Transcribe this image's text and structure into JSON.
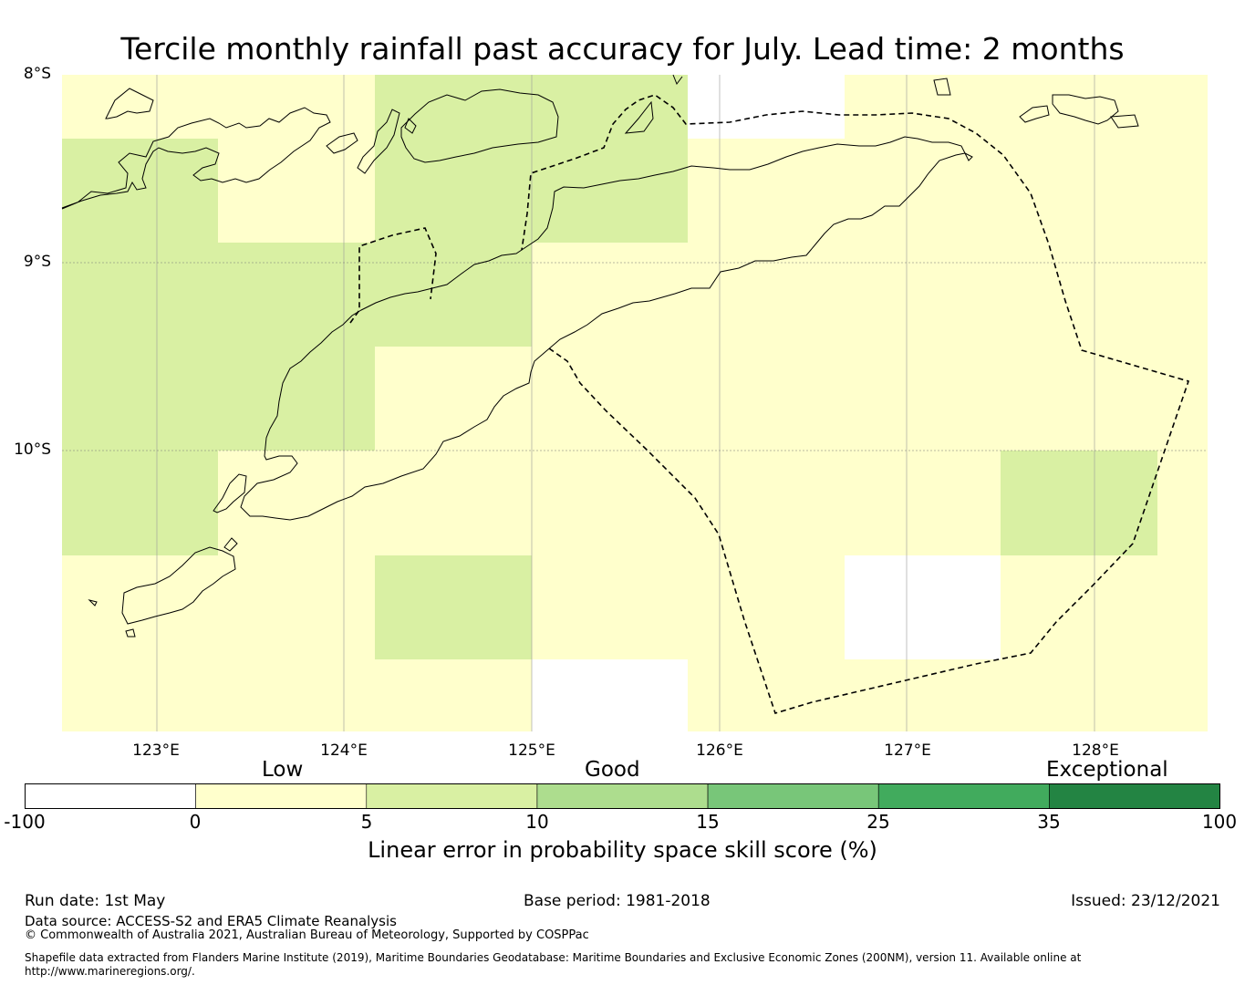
{
  "title": "Tercile monthly rainfall past accuracy for July. Lead time: 2 months",
  "map": {
    "lat_labels": [
      "8°S",
      "9°S",
      "10°S"
    ],
    "lon_labels": [
      "123°E",
      "124°E",
      "125°E",
      "126°E",
      "127°E",
      "128°E"
    ],
    "cells": [
      {
        "row": 0,
        "col": 0,
        "v": "low"
      },
      {
        "row": 0,
        "col": 1,
        "v": "low"
      },
      {
        "row": 0,
        "col": 2,
        "v": "good"
      },
      {
        "row": 0,
        "col": 3,
        "v": "good"
      },
      {
        "row": 0,
        "col": 4,
        "v": "missing"
      },
      {
        "row": 0,
        "col": 5,
        "v": "low"
      },
      {
        "row": 0,
        "col": 6,
        "v": "low"
      },
      {
        "row": 0,
        "col": 7,
        "v": "low"
      },
      {
        "row": 1,
        "col": 0,
        "v": "good"
      },
      {
        "row": 1,
        "col": 1,
        "v": "low"
      },
      {
        "row": 1,
        "col": 2,
        "v": "good"
      },
      {
        "row": 1,
        "col": 3,
        "v": "good"
      },
      {
        "row": 1,
        "col": 4,
        "v": "low"
      },
      {
        "row": 1,
        "col": 5,
        "v": "low"
      },
      {
        "row": 1,
        "col": 6,
        "v": "low"
      },
      {
        "row": 1,
        "col": 7,
        "v": "low"
      },
      {
        "row": 2,
        "col": 0,
        "v": "good"
      },
      {
        "row": 2,
        "col": 1,
        "v": "good"
      },
      {
        "row": 2,
        "col": 2,
        "v": "good"
      },
      {
        "row": 2,
        "col": 3,
        "v": "low"
      },
      {
        "row": 2,
        "col": 4,
        "v": "low"
      },
      {
        "row": 2,
        "col": 5,
        "v": "low"
      },
      {
        "row": 2,
        "col": 6,
        "v": "low"
      },
      {
        "row": 2,
        "col": 7,
        "v": "low"
      },
      {
        "row": 3,
        "col": 0,
        "v": "good"
      },
      {
        "row": 3,
        "col": 1,
        "v": "good"
      },
      {
        "row": 3,
        "col": 2,
        "v": "low"
      },
      {
        "row": 3,
        "col": 3,
        "v": "low"
      },
      {
        "row": 3,
        "col": 4,
        "v": "low"
      },
      {
        "row": 3,
        "col": 5,
        "v": "low"
      },
      {
        "row": 3,
        "col": 6,
        "v": "low"
      },
      {
        "row": 3,
        "col": 7,
        "v": "low"
      },
      {
        "row": 4,
        "col": 0,
        "v": "good"
      },
      {
        "row": 4,
        "col": 1,
        "v": "low"
      },
      {
        "row": 4,
        "col": 2,
        "v": "low"
      },
      {
        "row": 4,
        "col": 3,
        "v": "low"
      },
      {
        "row": 4,
        "col": 4,
        "v": "low"
      },
      {
        "row": 4,
        "col": 5,
        "v": "low"
      },
      {
        "row": 4,
        "col": 6,
        "v": "good"
      },
      {
        "row": 4,
        "col": 7,
        "v": "low"
      },
      {
        "row": 5,
        "col": 0,
        "v": "low"
      },
      {
        "row": 5,
        "col": 1,
        "v": "low"
      },
      {
        "row": 5,
        "col": 2,
        "v": "good"
      },
      {
        "row": 5,
        "col": 3,
        "v": "low"
      },
      {
        "row": 5,
        "col": 4,
        "v": "low"
      },
      {
        "row": 5,
        "col": 5,
        "v": "missing"
      },
      {
        "row": 5,
        "col": 6,
        "v": "low"
      },
      {
        "row": 5,
        "col": 7,
        "v": "low"
      },
      {
        "row": 6,
        "col": 0,
        "v": "low"
      },
      {
        "row": 6,
        "col": 1,
        "v": "low"
      },
      {
        "row": 6,
        "col": 2,
        "v": "low"
      },
      {
        "row": 6,
        "col": 3,
        "v": "missing"
      },
      {
        "row": 6,
        "col": 4,
        "v": "low"
      },
      {
        "row": 6,
        "col": 5,
        "v": "low"
      },
      {
        "row": 6,
        "col": 6,
        "v": "low"
      },
      {
        "row": 6,
        "col": 7,
        "v": "low"
      }
    ],
    "colors": {
      "low": "#ffffcc",
      "good": "#d9f0a3",
      "missing": "#ffffff"
    }
  },
  "colorbar": {
    "category_labels": [
      "Low",
      "Good",
      "Exceptional"
    ],
    "ticks": [
      "-100",
      "0",
      "5",
      "10",
      "15",
      "25",
      "35",
      "100"
    ],
    "colors": [
      "#ffffff",
      "#ffffcc",
      "#d9f0a3",
      "#addd8e",
      "#78c679",
      "#41ab5d",
      "#238443"
    ],
    "title": "Linear error in probability space skill score (%)"
  },
  "footer": {
    "run_date": "Run date: 1st May",
    "base_period": "Base period: 1981-2018",
    "issued": "Issued: 23/12/2021",
    "data_source": "Data source: ACCESS-S2 and ERA5 Climate Reanalysis",
    "copyright": "© Commonwealth of Australia 2021, Australian Bureau of Meteorology, Supported by COSPPac",
    "shapefile_line1": "Shapefile data extracted from Flanders Marine Institute (2019), Maritime Boundaries Geodatabase: Maritime Boundaries and Exclusive Economic Zones (200NM), version 11. Available online at",
    "shapefile_line2": "http://www.marineregions.org/."
  }
}
